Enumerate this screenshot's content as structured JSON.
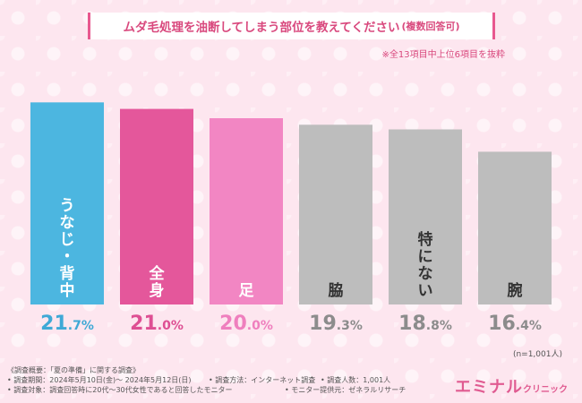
{
  "title": {
    "main": "ムダ毛処理を油断してしまう部位を教えてください",
    "sub": "(複数回答可)"
  },
  "note": "※全13項目中上位6項目を抜粋",
  "n_label": "(n=1,001人)",
  "chart_data": {
    "type": "bar",
    "title": "ムダ毛処理を油断してしまう部位を教えてください(複数回答可)",
    "unit": "%",
    "categories": [
      "うなじ・背中",
      "全身",
      "足",
      "脇",
      "特にない",
      "腕"
    ],
    "values": [
      21.7,
      21.0,
      20.0,
      19.3,
      18.8,
      16.4
    ],
    "colors": [
      "#4cb6e0",
      "#e4579b",
      "#f286c3",
      "#bdbdbd",
      "#bdbdbd",
      "#bdbdbd"
    ],
    "value_colors": [
      "#3fa9d6",
      "#de4f93",
      "#ef7fbe",
      "#8c8c8c",
      "#8c8c8c",
      "#8c8c8c"
    ],
    "ylim": [
      0,
      25
    ]
  },
  "footer": {
    "overview": "《調査概要：「夏の準備」に関する調査》",
    "period": "• 調査期間：2024年5月10日(金)〜 2024年5月12日(日)",
    "method": "• 調査方法：インターネット調査",
    "count": "• 調査人数：1,001人",
    "target": "• 調査対象：調査回答時に20代〜30代女性であると回答したモニター",
    "provider": "• モニター提供元：ゼネラルリサーチ"
  },
  "logo": {
    "main": "エミナル",
    "small": "クリニック"
  }
}
